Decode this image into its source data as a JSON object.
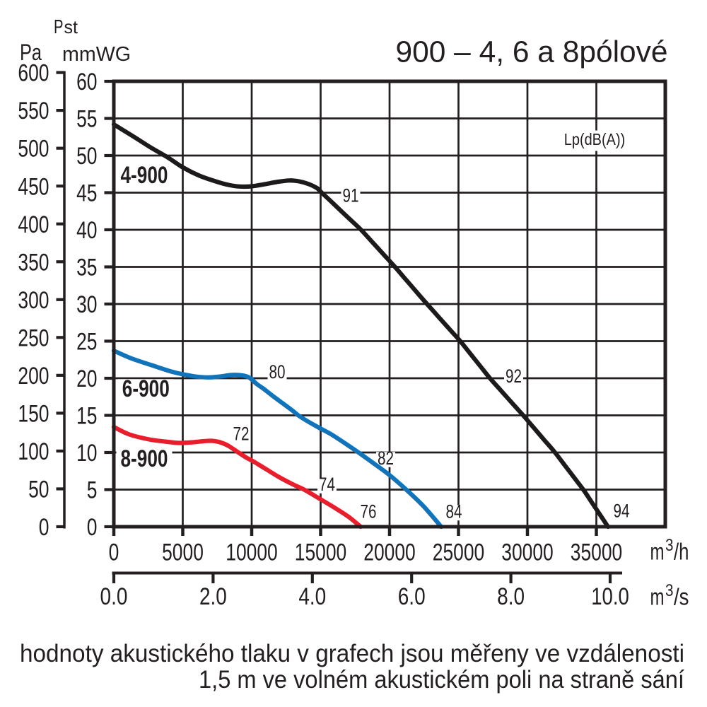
{
  "colors": {
    "ink": "#231f20",
    "curve_black": "#1d1a1b",
    "curve_blue": "#1173b9",
    "curve_red": "#e81e2c",
    "background": "#ffffff"
  },
  "header": {
    "quantity_symbol": "P",
    "quantity_subscript": "st",
    "pa_unit": "Pa",
    "mmwg_unit": "mmWG"
  },
  "chart_data": {
    "type": "line",
    "title": "900 – 4, 6 a 8pólové",
    "annotation": "Lp(dB(A))",
    "x_axis_primary": {
      "unit": "m³/h",
      "min": 0,
      "max": 40000,
      "tick_step": 5000,
      "tick_labels": [
        "0",
        "5000",
        "10000",
        "15000",
        "20000",
        "25000",
        "30000",
        "35000"
      ]
    },
    "x_axis_secondary": {
      "unit": "m³/s",
      "min": 0,
      "max": 10,
      "tick_step": 2,
      "tick_labels": [
        "0.0",
        "2.0",
        "4.0",
        "6.0",
        "8.0",
        "10.0"
      ],
      "m3h_per_m3s": 3600
    },
    "y_axis_mmwg": {
      "unit": "mmWG",
      "min": 0,
      "max": 60,
      "tick_step": 5,
      "tick_labels": [
        "60",
        "55",
        "50",
        "45",
        "40",
        "35",
        "30",
        "25",
        "20",
        "15",
        "10",
        "5",
        "0"
      ]
    },
    "y_axis_pa": {
      "unit": "Pa",
      "min": 0,
      "max": 600,
      "tick_step": 50,
      "tick_labels": [
        "600",
        "550",
        "500",
        "450",
        "400",
        "350",
        "300",
        "250",
        "200",
        "150",
        "100",
        "50",
        "0"
      ],
      "pa_per_mmwg": 9.80665
    },
    "grid": true,
    "series": [
      {
        "name": "4-900",
        "color_key": "curve_black",
        "name_label_pos": [
          2205,
          47.1
        ],
        "db_labels": [
          {
            "text": "91",
            "pos": [
              17180,
              44.43
            ]
          },
          {
            "text": "92",
            "pos": [
              29000,
              20.1
            ]
          },
          {
            "text": "94",
            "pos": [
              36820,
              1.95
            ]
          }
        ],
        "points": [
          [
            0,
            54.19
          ],
          [
            1333,
            52.67
          ],
          [
            2667,
            51.1
          ],
          [
            3897,
            49.76
          ],
          [
            5026,
            48.38
          ],
          [
            6205,
            47.29
          ],
          [
            7385,
            46.52
          ],
          [
            8308,
            46.05
          ],
          [
            9128,
            45.83
          ],
          [
            10000,
            45.86
          ],
          [
            10872,
            46.11
          ],
          [
            11795,
            46.43
          ],
          [
            12718,
            46.64
          ],
          [
            13436,
            46.52
          ],
          [
            14154,
            46.14
          ],
          [
            14769,
            45.57
          ],
          [
            15077,
            45.0
          ],
          [
            15897,
            43.57
          ],
          [
            16923,
            41.76
          ],
          [
            17928,
            40.0
          ],
          [
            18769,
            38.3
          ],
          [
            19590,
            36.63
          ],
          [
            20390,
            35.0
          ],
          [
            21179,
            33.3
          ],
          [
            21949,
            31.64
          ],
          [
            22718,
            30.0
          ],
          [
            23538,
            28.3
          ],
          [
            24359,
            26.59
          ],
          [
            25128,
            25.0
          ],
          [
            25846,
            23.33
          ],
          [
            26564,
            21.67
          ],
          [
            27282,
            20.0
          ],
          [
            28103,
            18.3
          ],
          [
            28923,
            16.59
          ],
          [
            29692,
            15.0
          ],
          [
            30462,
            13.33
          ],
          [
            31231,
            11.66
          ],
          [
            32000,
            10.0
          ],
          [
            32718,
            8.25
          ],
          [
            33385,
            6.63
          ],
          [
            34051,
            5.0
          ],
          [
            34667,
            3.29
          ],
          [
            35282,
            1.57
          ],
          [
            35846,
            0.0
          ]
        ]
      },
      {
        "name": "6-900",
        "color_key": "curve_blue",
        "name_label_pos": [
          2323,
          18.33
        ],
        "db_labels": [
          {
            "text": "80",
            "pos": [
              11846,
              20.67
            ]
          },
          {
            "text": "82",
            "pos": [
              19718,
              9.05
            ]
          },
          {
            "text": "84",
            "pos": [
              24667,
              1.86
            ]
          }
        ],
        "points": [
          [
            0,
            23.71
          ],
          [
            1282,
            22.67
          ],
          [
            2821,
            21.71
          ],
          [
            4359,
            20.81
          ],
          [
            5744,
            20.29
          ],
          [
            6769,
            20.11
          ],
          [
            7692,
            20.23
          ],
          [
            8564,
            20.45
          ],
          [
            9385,
            20.36
          ],
          [
            9850,
            20.05
          ],
          [
            10360,
            19.24
          ],
          [
            10870,
            18.57
          ],
          [
            11490,
            17.67
          ],
          [
            12246,
            16.63
          ],
          [
            12985,
            15.6
          ],
          [
            13415,
            14.95
          ],
          [
            14154,
            14.1
          ],
          [
            14974,
            13.24
          ],
          [
            15744,
            12.48
          ],
          [
            16769,
            11.24
          ],
          [
            17821,
            9.9
          ],
          [
            18821,
            8.57
          ],
          [
            20000,
            6.95
          ],
          [
            21205,
            5.0
          ],
          [
            22462,
            2.76
          ],
          [
            23744,
            0.0
          ]
        ]
      },
      {
        "name": "8-900",
        "color_key": "curve_red",
        "name_label_pos": [
          2205,
          8.9
        ],
        "db_labels": [
          {
            "text": "72",
            "pos": [
              9231,
              12.32
            ]
          },
          {
            "text": "74",
            "pos": [
              15462,
              5.52
            ]
          },
          {
            "text": "76",
            "pos": [
              18462,
              1.86
            ]
          }
        ],
        "points": [
          [
            0,
            13.43
          ],
          [
            1128,
            12.43
          ],
          [
            2564,
            11.76
          ],
          [
            3692,
            11.48
          ],
          [
            4718,
            11.29
          ],
          [
            5744,
            11.38
          ],
          [
            6500,
            11.52
          ],
          [
            7100,
            11.57
          ],
          [
            7700,
            11.38
          ],
          [
            8300,
            10.9
          ],
          [
            9030,
            10.0
          ],
          [
            9620,
            9.3
          ],
          [
            10154,
            8.76
          ],
          [
            11077,
            7.71
          ],
          [
            12000,
            6.67
          ],
          [
            12923,
            5.76
          ],
          [
            13846,
            4.95
          ],
          [
            14974,
            3.71
          ],
          [
            16000,
            2.57
          ],
          [
            17026,
            1.33
          ],
          [
            17897,
            0.0
          ]
        ]
      }
    ]
  },
  "note": {
    "line1": "hodnoty akustického tlaku v grafech jsou měřeny ve vzdálenosti",
    "line2": "1,5 m ve volném akustickém poli na straně sání"
  }
}
